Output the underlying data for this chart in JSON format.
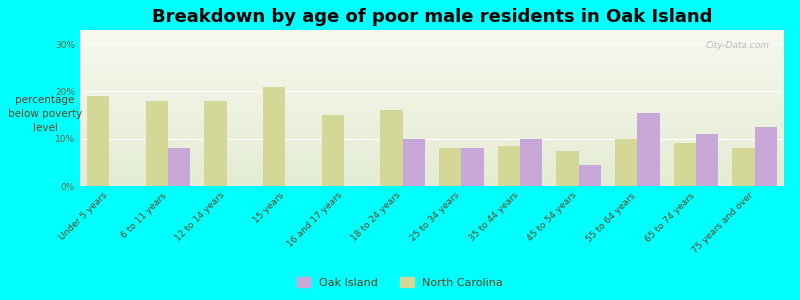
{
  "title": "Breakdown by age of poor male residents in Oak Island",
  "ylabel": "percentage\nbelow poverty\nlevel",
  "categories": [
    "Under 5 years",
    "6 to 11 years",
    "12 to 14 years",
    "15 years",
    "16 and 17 years",
    "18 to 24 years",
    "25 to 34 years",
    "35 to 44 years",
    "45 to 54 years",
    "55 to 64 years",
    "65 to 74 years",
    "75 years and over"
  ],
  "oak_island": [
    0,
    8.0,
    0,
    0,
    0,
    10.0,
    8.0,
    10.0,
    4.5,
    15.5,
    11.0,
    12.5
  ],
  "north_carolina": [
    19.0,
    18.0,
    18.0,
    21.0,
    15.0,
    16.0,
    8.0,
    8.5,
    7.5,
    10.0,
    9.0,
    8.0
  ],
  "oak_island_color": "#c8a8d8",
  "north_carolina_color": "#d4d896",
  "background_color": "#00ffff",
  "plot_bg_top": "#f8f8ee",
  "plot_bg_bottom": "#e4ecd4",
  "yticks": [
    0,
    10,
    20,
    30
  ],
  "ylim": [
    0,
    33
  ],
  "title_fontsize": 13,
  "axis_label_fontsize": 7.5,
  "tick_fontsize": 6.5,
  "legend_fontsize": 8,
  "watermark": "City-Data.com"
}
